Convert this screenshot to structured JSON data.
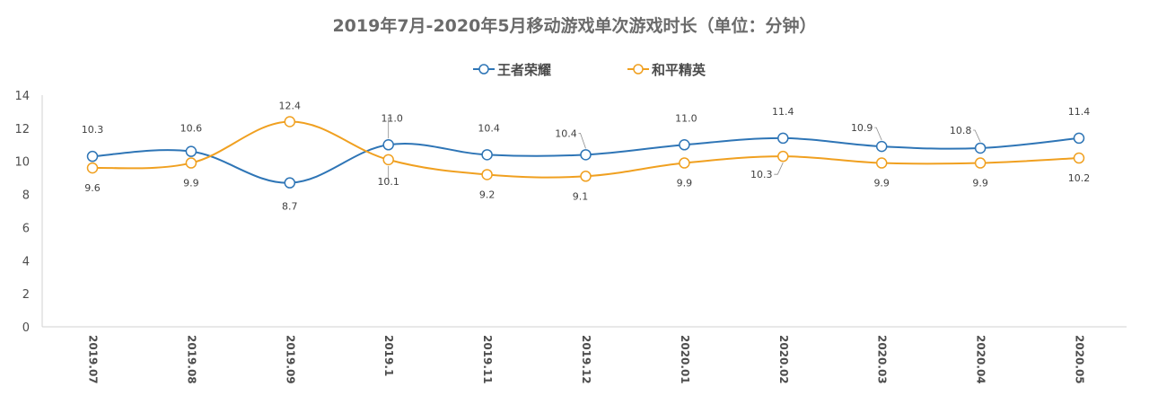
{
  "chart_data": {
    "type": "line",
    "title": "2019年7月-2020年5月移动游戏单次游戏时长（单位：分钟）",
    "categories": [
      "2019.07",
      "2019.08",
      "2019.09",
      "2019.1",
      "2019.11",
      "2019.12",
      "2020.01",
      "2020.02",
      "2020.03",
      "2020.04",
      "2020.05"
    ],
    "ylim": [
      0,
      14
    ],
    "yticks": [
      0,
      2,
      4,
      6,
      8,
      10,
      12,
      14
    ],
    "grid": false,
    "legend_position": "top-center",
    "series": [
      {
        "name": "王者荣耀",
        "color": "#2e75b6",
        "values": [
          10.3,
          10.6,
          8.7,
          11.0,
          10.4,
          10.4,
          11.0,
          11.4,
          10.9,
          10.8,
          11.4
        ],
        "labels": [
          "10.3",
          "10.6",
          "8.7",
          "11.0",
          "10.4",
          "10.4",
          "11.0",
          "11.4",
          "10.9",
          "10.8",
          "11.4"
        ]
      },
      {
        "name": "和平精英",
        "color": "#f0a020",
        "values": [
          9.6,
          9.9,
          12.4,
          10.1,
          9.2,
          9.1,
          9.9,
          10.3,
          9.9,
          9.9,
          10.2
        ],
        "labels": [
          "9.6",
          "9.9",
          "12.4",
          "10.1",
          "9.2",
          "9.1",
          "9.9",
          "10.3",
          "9.9",
          "9.9",
          "10.2"
        ]
      }
    ]
  }
}
